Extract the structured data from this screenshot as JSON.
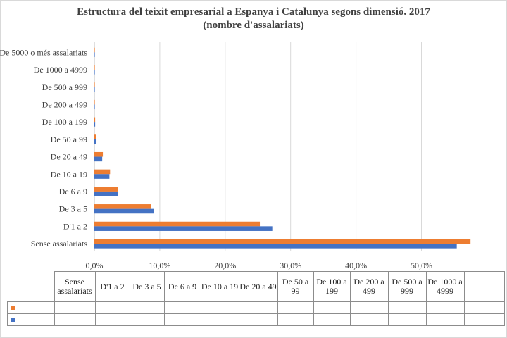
{
  "chart_data": {
    "type": "bar",
    "orientation": "horizontal",
    "title": "Estructura del teixit empresarial a Espanya i Catalunya segons dimensió. 2017",
    "subtitle": "(nombre d'assalariats)",
    "categories": [
      "Sense assalariats",
      "D'1 a 2",
      "De 3 a 5",
      "De 6 a 9",
      "De 10 a 19",
      "De 20 a 49",
      "De 50 a 99",
      "De 100 a 199",
      "De 200 a 499",
      "De 500 a 999",
      "De 1000 a 4999",
      "De 5000 o més assalariats"
    ],
    "table_categories": [
      "Sense assalariats",
      "D'1 a 2",
      "De 3 a 5",
      "De 6 a 9",
      "De 10 a 19",
      "De 20 a 49",
      "De 50 a 99",
      "De 100 a 199",
      "De 200 a 499",
      "De 500 a 999",
      "De 1000 a 4999"
    ],
    "series": [
      {
        "name": "",
        "color": "#ed7d31",
        "values": [
          57.5,
          25.3,
          8.7,
          3.6,
          2.4,
          1.3,
          0.3,
          0.12,
          0.06,
          0.02,
          0.01,
          0.003
        ]
      },
      {
        "name": "",
        "color": "#4472c4",
        "values": [
          55.4,
          27.2,
          9.1,
          3.6,
          2.3,
          1.2,
          0.3,
          0.12,
          0.05,
          0.02,
          0.01,
          0.003
        ]
      }
    ],
    "xlim": [
      0,
      60
    ],
    "xticks": [
      0,
      10,
      20,
      30,
      40,
      50
    ],
    "xtick_labels": [
      "0,0%",
      "10,0%",
      "20,0%",
      "30,0%",
      "40,0%",
      "50,0%"
    ],
    "grid": true,
    "legend": "data-table"
  }
}
